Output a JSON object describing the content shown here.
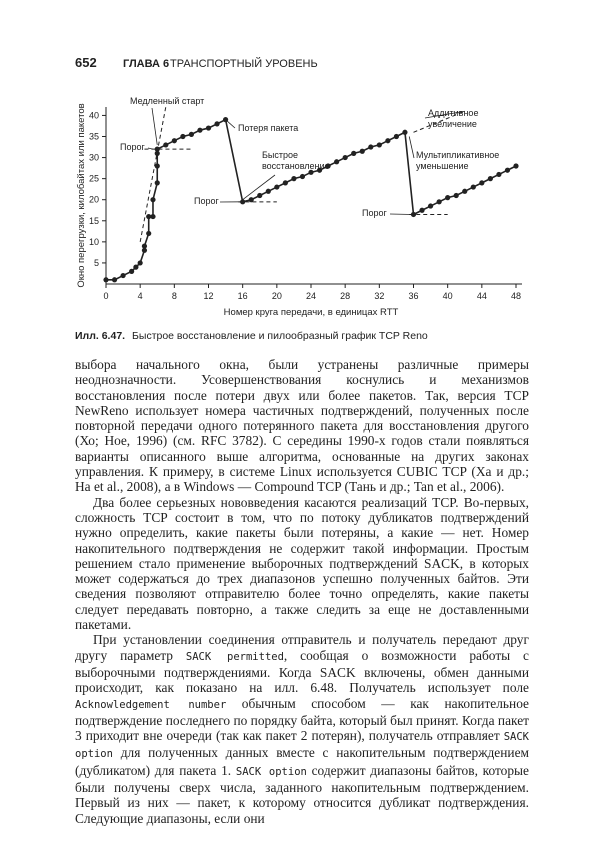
{
  "header": {
    "page_number": "652",
    "chapter": "ГЛАВА 6",
    "chapter_title": "ТРАНСПОРТНЫЙ УРОВЕНЬ"
  },
  "chart_data": {
    "type": "line",
    "xlabel": "Номер круга передачи, в единицах RTT",
    "ylabel": "Окно перегрузки, килобайтах или пакетов",
    "xlim": [
      0,
      48
    ],
    "xticks": [
      0,
      4,
      8,
      12,
      16,
      20,
      24,
      28,
      32,
      36,
      40,
      44,
      48
    ],
    "ylim": [
      0,
      42
    ],
    "yticks": [
      5,
      10,
      15,
      20,
      25,
      30,
      35,
      40
    ],
    "series": [
      {
        "name": "TCP Reno",
        "color": "#222222",
        "x": [
          0,
          1,
          2,
          3,
          3.5,
          4,
          4.5,
          4.5,
          5,
          5,
          5.5,
          5.5,
          6,
          6,
          6,
          6,
          7,
          8,
          9,
          10,
          11,
          12,
          13,
          14,
          16,
          17,
          18,
          19,
          20,
          21,
          22,
          23,
          24,
          25,
          26,
          27,
          28,
          29,
          30,
          31,
          32,
          33,
          34,
          35,
          36,
          37,
          38,
          39,
          40,
          41,
          42,
          43,
          44,
          45,
          46,
          47,
          48
        ],
        "values": [
          1,
          1,
          2,
          3,
          4,
          5,
          8,
          9,
          12,
          16,
          16,
          20,
          24,
          28,
          31,
          32,
          33,
          34,
          35,
          35.5,
          36.5,
          37,
          38,
          39,
          19.5,
          20,
          21,
          22,
          23,
          24,
          25,
          25.5,
          26.5,
          27,
          28,
          29,
          30,
          31,
          31.5,
          32.5,
          33,
          34,
          35,
          36,
          16.5,
          17.5,
          18.5,
          19.5,
          20.5,
          21,
          22,
          23,
          24,
          25,
          26,
          27,
          28
        ]
      }
    ],
    "thresholds": [
      32,
      19.5,
      16.5
    ],
    "annotations": [
      [
        "Медленный старт"
      ],
      [
        "Порог"
      ],
      [
        "Потеря пакета"
      ],
      [
        "Быстрое",
        "восстановление"
      ],
      [
        "Порог"
      ],
      [
        "Аддитивное",
        "увеличение"
      ],
      [
        "Мультипликативное",
        "уменьшение"
      ],
      [
        "Порог"
      ]
    ]
  },
  "caption": {
    "label": "Илл. 6.47.",
    "text": "Быстрое восстановление и пилообразный график TCP Reno"
  },
  "paragraphs": [
    [
      "выбора начального окна, были устранены различные примеры неоднозначности. Усовершенствования коснулись и механизмов восстановления после потери двух или более пакетов. Так, версия TCP NewReno использует номера частичных подтверждений, полученных после повторной передачи одного потерянного пакета для восстановления другого (Хо; Hoe, 1996) (см. RFC 3782). С середины 1990-х годов стали появляться варианты описанного выше алгоритма, основанные на других законах управления. К примеру, в системе Linux используется CUBIC TCP (Ха и др.; Ha et al., 2008), а в Windows — Compound TCP (Тань и др.; Tan et al., 2006)."
    ],
    [
      "Два более серьезных нововведения касаются реализаций TCP. Во-первых, сложность TCP состоит в том, что по потоку дубликатов подтверждений нужно определить, какие пакеты были потеряны, а какие — нет. Номер накопительного подтверждения не содержит такой информации. Простым решением стало применение выборочных подтверждений SACK, в которых может содержаться до трех диапазонов успешно полученных байтов. Эти сведения позволяют отправителю более точно определять, какие пакеты следует передавать повторно, а также следить за еще не доставленными пакетами."
    ],
    [
      "При установлении соединения отправитель и получатель передают друг другу параметр ",
      "SACK permitted",
      ", сообщая о возможности работы с выборочными подтверждениями. Когда SACK включены, обмен данными происходит, как показано на илл. 6.48. Получатель использует поле ",
      "Acknowledgement number",
      " обычным способом — как накопительное подтверждение последнего по порядку байта, который был принят. Когда пакет 3 приходит вне очереди (так как пакет 2 потерян), получатель отправляет ",
      "SACK option",
      " для полученных данных вместе с накопительным подтверждением (дубликатом) для пакета 1. ",
      "SACK option",
      " содержит диапазоны байтов, которые были получены сверх числа, заданного накопительным подтверждением. Первый из них — пакет, к которому относится дубликат подтверждения. Следующие диапазоны, если они"
    ]
  ]
}
